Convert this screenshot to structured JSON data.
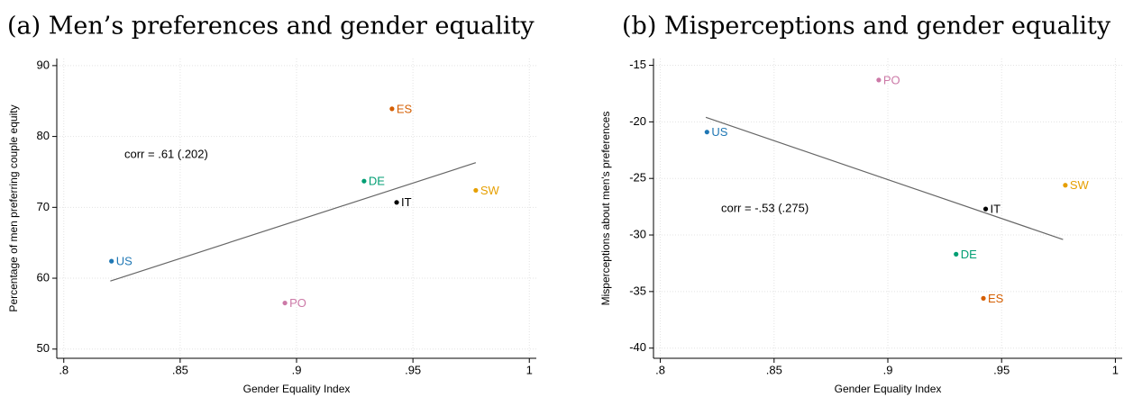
{
  "chart_data": [
    {
      "type": "scatter",
      "title": "(a) Men’s preferences and gender equality",
      "x_label": "Gender Equality Index",
      "y_label": "Percentage of men preferring couple equity",
      "annotation": "corr = .61 (.202)",
      "categories": [
        "US",
        "PO",
        "DE",
        "ES",
        "IT",
        "SW"
      ],
      "x": [
        0.8205,
        0.895,
        0.929,
        0.941,
        0.943,
        0.977
      ],
      "values": [
        62.4,
        56.5,
        73.7,
        83.9,
        70.7,
        72.4
      ],
      "colors": [
        "#1f77b4",
        "#cc79a7",
        "#009e73",
        "#d55e00",
        "#000000",
        "#e69f00"
      ],
      "fit": {
        "x": [
          0.82,
          0.977
        ],
        "y": [
          59.6,
          76.3
        ],
        "color": "#666666"
      },
      "xlim": [
        0.797,
        1.003
      ],
      "xticks": [
        {
          "value": 0.8,
          "label": ".8"
        },
        {
          "value": 0.85,
          "label": ".85"
        },
        {
          "value": 0.9,
          "label": ".9"
        },
        {
          "value": 0.95,
          "label": ".95"
        },
        1
      ],
      "ylim": [
        48.7,
        91
      ],
      "yticks": [
        50,
        60,
        70,
        80,
        90
      ],
      "grid": true
    },
    {
      "type": "scatter",
      "title": "(b) Misperceptions and gender equality",
      "x_label": "Gender Equality Index",
      "y_label": "Misperceptions about men's preferences",
      "annotation": "corr = -.53 (.275)",
      "categories": [
        "US",
        "PO",
        "DE",
        "ES",
        "IT",
        "SW"
      ],
      "x": [
        0.8205,
        0.896,
        0.93,
        0.942,
        0.943,
        0.978
      ],
      "values": [
        -20.9,
        -16.3,
        -31.7,
        -35.6,
        -27.7,
        -25.6
      ],
      "colors": [
        "#1f77b4",
        "#cc79a7",
        "#009e73",
        "#d55e00",
        "#000000",
        "#e69f00"
      ],
      "fit": {
        "x": [
          0.82,
          0.977
        ],
        "y": [
          -19.6,
          -30.4
        ],
        "color": "#666666"
      },
      "xlim": [
        0.797,
        1.003
      ],
      "xticks": [
        {
          "value": 0.8,
          "label": ".8"
        },
        {
          "value": 0.85,
          "label": ".85"
        },
        {
          "value": 0.9,
          "label": ".9"
        },
        {
          "value": 0.95,
          "label": ".95"
        },
        1
      ],
      "ylim": [
        -40.9,
        -14.4
      ],
      "yticks": [
        -40,
        -35,
        -30,
        -25,
        -20,
        -15
      ],
      "grid": true
    }
  ]
}
